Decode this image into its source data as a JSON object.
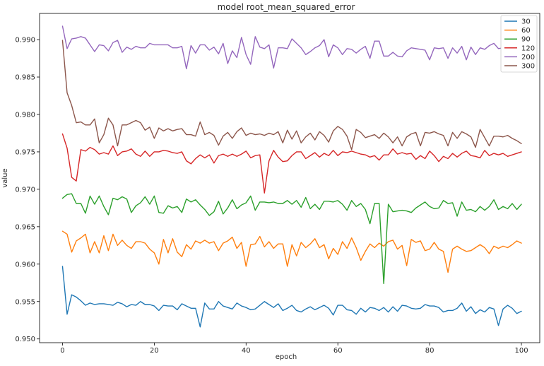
{
  "chart_data": {
    "type": "line",
    "title": "model root_mean_squared_error",
    "xlabel": "epoch",
    "ylabel": "value",
    "xlim": [
      -5,
      104
    ],
    "ylim": [
      0.9495,
      0.9935
    ],
    "xticks": [
      0,
      20,
      40,
      60,
      80,
      100
    ],
    "yticks": [
      0.95,
      0.955,
      0.96,
      0.965,
      0.97,
      0.975,
      0.98,
      0.985,
      0.99
    ],
    "xtick_labels": [
      "0",
      "20",
      "40",
      "60",
      "80",
      "100"
    ],
    "ytick_labels": [
      "0.950",
      "0.955",
      "0.960",
      "0.965",
      "0.970",
      "0.975",
      "0.980",
      "0.985",
      "0.990"
    ],
    "grid": false,
    "legend_position": "top-right",
    "series": [
      {
        "name": "30",
        "color": "#1f77b4",
        "values": [
          0.9597,
          0.9533,
          0.9559,
          0.9556,
          0.9551,
          0.9545,
          0.9548,
          0.9546,
          0.9547,
          0.9547,
          0.9546,
          0.9545,
          0.9549,
          0.9547,
          0.9543,
          0.9546,
          0.9545,
          0.955,
          0.9546,
          0.9546,
          0.9544,
          0.9538,
          0.9545,
          0.9544,
          0.9544,
          0.9539,
          0.9547,
          0.9544,
          0.9541,
          0.9541,
          0.9516,
          0.9548,
          0.954,
          0.954,
          0.955,
          0.9544,
          0.9542,
          0.954,
          0.9548,
          0.9544,
          0.9542,
          0.9539,
          0.954,
          0.9545,
          0.955,
          0.9546,
          0.9542,
          0.9547,
          0.9538,
          0.9541,
          0.9545,
          0.9538,
          0.9536,
          0.954,
          0.9543,
          0.9539,
          0.9542,
          0.9545,
          0.9541,
          0.9532,
          0.9545,
          0.9545,
          0.9539,
          0.9538,
          0.9533,
          0.9541,
          0.9536,
          0.9542,
          0.9541,
          0.9538,
          0.9542,
          0.9536,
          0.9543,
          0.9537,
          0.9545,
          0.9544,
          0.9541,
          0.954,
          0.9541,
          0.9546,
          0.9544,
          0.9544,
          0.9542,
          0.9536,
          0.9538,
          0.9538,
          0.9541,
          0.9548,
          0.9537,
          0.9543,
          0.9534,
          0.9539,
          0.9536,
          0.9542,
          0.954,
          0.9518,
          0.954,
          0.9545,
          0.9541,
          0.9534,
          0.9537
        ]
      },
      {
        "name": "60",
        "color": "#ff7f0e",
        "values": [
          0.9644,
          0.964,
          0.9616,
          0.9631,
          0.9635,
          0.964,
          0.9615,
          0.963,
          0.9615,
          0.9638,
          0.9618,
          0.964,
          0.9625,
          0.9632,
          0.9625,
          0.9621,
          0.963,
          0.963,
          0.9628,
          0.962,
          0.9615,
          0.96,
          0.9633,
          0.9615,
          0.9634,
          0.9616,
          0.961,
          0.9626,
          0.962,
          0.9631,
          0.9628,
          0.9632,
          0.9628,
          0.963,
          0.9618,
          0.9628,
          0.9631,
          0.9636,
          0.9621,
          0.9629,
          0.9597,
          0.9626,
          0.9627,
          0.9637,
          0.9623,
          0.963,
          0.9621,
          0.9627,
          0.9627,
          0.9597,
          0.9626,
          0.9611,
          0.9629,
          0.9622,
          0.9627,
          0.9634,
          0.9622,
          0.9626,
          0.9607,
          0.9621,
          0.9613,
          0.963,
          0.9621,
          0.9635,
          0.9622,
          0.9605,
          0.9617,
          0.9627,
          0.9622,
          0.9628,
          0.9624,
          0.963,
          0.9632,
          0.962,
          0.9625,
          0.9598,
          0.9633,
          0.9629,
          0.9631,
          0.9618,
          0.962,
          0.9629,
          0.962,
          0.9617,
          0.9589,
          0.962,
          0.9624,
          0.962,
          0.9617,
          0.9618,
          0.9622,
          0.9626,
          0.9622,
          0.9614,
          0.9624,
          0.9621,
          0.9624,
          0.9622,
          0.9626,
          0.9631,
          0.9628
        ]
      },
      {
        "name": "90",
        "color": "#2ca02c",
        "values": [
          0.9688,
          0.9693,
          0.9694,
          0.9681,
          0.9681,
          0.9668,
          0.9691,
          0.968,
          0.9691,
          0.9677,
          0.9666,
          0.9688,
          0.9686,
          0.969,
          0.9687,
          0.9669,
          0.9678,
          0.9682,
          0.969,
          0.968,
          0.9691,
          0.9669,
          0.9668,
          0.9678,
          0.9675,
          0.9677,
          0.9669,
          0.9687,
          0.9683,
          0.9686,
          0.9679,
          0.9673,
          0.9665,
          0.967,
          0.9684,
          0.9667,
          0.9675,
          0.9686,
          0.9674,
          0.9679,
          0.9682,
          0.9691,
          0.9672,
          0.9683,
          0.9683,
          0.9682,
          0.9683,
          0.9681,
          0.9681,
          0.9685,
          0.968,
          0.9685,
          0.9676,
          0.9689,
          0.9674,
          0.968,
          0.9673,
          0.9684,
          0.9684,
          0.9683,
          0.9685,
          0.968,
          0.9672,
          0.9685,
          0.9677,
          0.9681,
          0.9673,
          0.9654,
          0.9681,
          0.9681,
          0.9574,
          0.968,
          0.967,
          0.9671,
          0.9672,
          0.9671,
          0.9669,
          0.9675,
          0.9679,
          0.9683,
          0.9677,
          0.9674,
          0.9675,
          0.9685,
          0.9681,
          0.9682,
          0.9664,
          0.9683,
          0.9672,
          0.9673,
          0.967,
          0.9677,
          0.9672,
          0.9677,
          0.9686,
          0.9673,
          0.9677,
          0.9674,
          0.9681,
          0.9673,
          0.968
        ]
      },
      {
        "name": "120",
        "color": "#d62728",
        "values": [
          0.9774,
          0.9755,
          0.9716,
          0.9711,
          0.9753,
          0.9751,
          0.9756,
          0.9753,
          0.9747,
          0.9749,
          0.9747,
          0.9758,
          0.9745,
          0.975,
          0.9751,
          0.9754,
          0.9747,
          0.9744,
          0.9751,
          0.9744,
          0.975,
          0.975,
          0.9752,
          0.9751,
          0.9749,
          0.9748,
          0.975,
          0.9738,
          0.9734,
          0.9741,
          0.9746,
          0.9742,
          0.9746,
          0.9735,
          0.9745,
          0.9747,
          0.9744,
          0.9747,
          0.9744,
          0.9747,
          0.9751,
          0.9742,
          0.9745,
          0.9746,
          0.9695,
          0.9738,
          0.9752,
          0.9743,
          0.9737,
          0.9738,
          0.9745,
          0.975,
          0.975,
          0.9741,
          0.9745,
          0.9749,
          0.9743,
          0.9748,
          0.9745,
          0.9752,
          0.9745,
          0.975,
          0.9749,
          0.9751,
          0.9749,
          0.9747,
          0.9746,
          0.9743,
          0.9745,
          0.9739,
          0.9746,
          0.9746,
          0.9754,
          0.9747,
          0.9749,
          0.9747,
          0.9748,
          0.974,
          0.9745,
          0.9741,
          0.9751,
          0.9745,
          0.9737,
          0.9744,
          0.9741,
          0.9748,
          0.9743,
          0.9748,
          0.9751,
          0.9745,
          0.9744,
          0.9742,
          0.9752,
          0.9745,
          0.9748,
          0.9746,
          0.9748,
          0.9744,
          0.9746,
          0.9748,
          0.975
        ]
      },
      {
        "name": "200",
        "color": "#9467bd",
        "values": [
          0.9918,
          0.9888,
          0.9901,
          0.9902,
          0.9904,
          0.9902,
          0.9893,
          0.9884,
          0.9893,
          0.9892,
          0.9885,
          0.9896,
          0.9899,
          0.9883,
          0.989,
          0.9887,
          0.9891,
          0.9889,
          0.9889,
          0.9895,
          0.9893,
          0.9893,
          0.9893,
          0.9893,
          0.9889,
          0.9889,
          0.9891,
          0.9861,
          0.9892,
          0.9882,
          0.9893,
          0.9893,
          0.9886,
          0.989,
          0.9881,
          0.9895,
          0.9868,
          0.9885,
          0.9876,
          0.9903,
          0.988,
          0.9867,
          0.9904,
          0.989,
          0.9888,
          0.9893,
          0.9862,
          0.9889,
          0.9889,
          0.9888,
          0.9901,
          0.9895,
          0.9889,
          0.988,
          0.9884,
          0.9889,
          0.9892,
          0.99,
          0.9877,
          0.9893,
          0.9889,
          0.988,
          0.9888,
          0.9887,
          0.9882,
          0.9887,
          0.9891,
          0.9875,
          0.9898,
          0.9898,
          0.9878,
          0.9878,
          0.9883,
          0.9878,
          0.9877,
          0.9885,
          0.9889,
          0.9888,
          0.9887,
          0.9886,
          0.9873,
          0.9889,
          0.9888,
          0.9889,
          0.9875,
          0.9889,
          0.9882,
          0.9891,
          0.9873,
          0.989,
          0.988,
          0.9889,
          0.9887,
          0.9892,
          0.9895,
          0.9888,
          0.9889,
          0.989,
          0.9891,
          0.9891,
          0.9888
        ]
      },
      {
        "name": "300",
        "color": "#8c564b",
        "values": [
          0.9899,
          0.9829,
          0.9812,
          0.9789,
          0.979,
          0.9786,
          0.9786,
          0.9794,
          0.9762,
          0.9773,
          0.9795,
          0.9786,
          0.9758,
          0.9786,
          0.9786,
          0.9789,
          0.9792,
          0.9789,
          0.9779,
          0.9783,
          0.9768,
          0.9782,
          0.9778,
          0.9781,
          0.9778,
          0.978,
          0.9781,
          0.9773,
          0.9773,
          0.9771,
          0.979,
          0.9773,
          0.9776,
          0.9772,
          0.9759,
          0.9771,
          0.9776,
          0.9768,
          0.9777,
          0.9782,
          0.9772,
          0.9775,
          0.9773,
          0.9774,
          0.9772,
          0.9775,
          0.9773,
          0.9777,
          0.9762,
          0.9779,
          0.9767,
          0.9778,
          0.9762,
          0.977,
          0.9775,
          0.9766,
          0.9777,
          0.9772,
          0.9763,
          0.9778,
          0.9784,
          0.978,
          0.9771,
          0.9753,
          0.978,
          0.9776,
          0.9769,
          0.9771,
          0.9773,
          0.9768,
          0.9775,
          0.977,
          0.9762,
          0.977,
          0.9758,
          0.977,
          0.9774,
          0.9776,
          0.9758,
          0.9776,
          0.9775,
          0.9777,
          0.9774,
          0.9772,
          0.9758,
          0.9776,
          0.9768,
          0.9777,
          0.9774,
          0.977,
          0.9756,
          0.978,
          0.9769,
          0.9758,
          0.9771,
          0.9771,
          0.977,
          0.9772,
          0.9768,
          0.9765,
          0.9761
        ]
      }
    ]
  }
}
